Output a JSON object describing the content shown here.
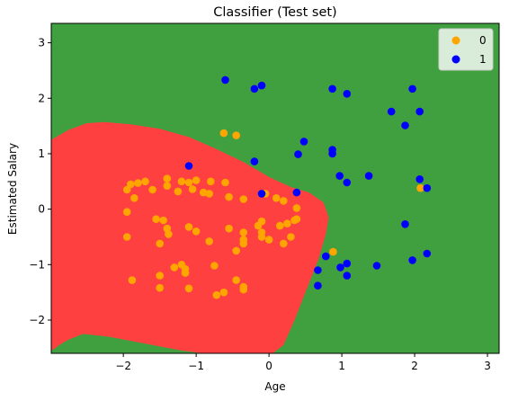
{
  "chart_data": {
    "type": "scatter",
    "title": "Classifier (Test set)",
    "xlabel": "Age",
    "ylabel": "Estimated Salary",
    "xlim": [
      -2.99,
      3.16
    ],
    "ylim": [
      -2.6,
      3.35
    ],
    "x_ticks": [
      -2,
      -1,
      0,
      1,
      2,
      3
    ],
    "y_ticks": [
      -2,
      -1,
      0,
      1,
      2,
      3
    ],
    "x_tick_labels": [
      "−2",
      "−1",
      "0",
      "1",
      "2",
      "3"
    ],
    "y_tick_labels": [
      "−2",
      "−1",
      "0",
      "1",
      "2",
      "3"
    ],
    "grid": false,
    "legend_position": "top-right",
    "background_region": {
      "class_0_color": "#ff4040",
      "class_1_color": "#40a040",
      "boundary": [
        [
          -2.99,
          -2.55
        ],
        [
          -2.95,
          -2.52
        ],
        [
          -2.88,
          -2.45
        ],
        [
          -2.75,
          -2.35
        ],
        [
          -2.55,
          -2.25
        ],
        [
          -2.2,
          -2.3
        ],
        [
          -1.6,
          -2.45
        ],
        [
          -1.2,
          -2.55
        ],
        [
          -0.9,
          -2.6
        ],
        [
          0.05,
          -2.6
        ],
        [
          0.2,
          -2.45
        ],
        [
          0.35,
          -2.0
        ],
        [
          0.5,
          -1.5
        ],
        [
          0.68,
          -0.9
        ],
        [
          0.78,
          -0.45
        ],
        [
          0.82,
          -0.15
        ],
        [
          0.75,
          0.12
        ],
        [
          0.55,
          0.3
        ],
        [
          0.3,
          0.4
        ],
        [
          0.0,
          0.58
        ],
        [
          -0.35,
          0.85
        ],
        [
          -0.75,
          1.1
        ],
        [
          -1.1,
          1.3
        ],
        [
          -1.5,
          1.45
        ],
        [
          -1.9,
          1.53
        ],
        [
          -2.25,
          1.57
        ],
        [
          -2.5,
          1.55
        ],
        [
          -2.75,
          1.43
        ],
        [
          -2.99,
          1.25
        ]
      ]
    },
    "series": [
      {
        "name": "0",
        "color": "#ffa500",
        "points": [
          [
            -1.9,
            0.45
          ],
          [
            -1.8,
            0.47
          ],
          [
            -1.7,
            0.5
          ],
          [
            -1.95,
            0.35
          ],
          [
            -1.85,
            0.2
          ],
          [
            -1.6,
            0.35
          ],
          [
            -1.4,
            0.42
          ],
          [
            -1.4,
            0.55
          ],
          [
            -1.2,
            0.5
          ],
          [
            -1.1,
            0.48
          ],
          [
            -1.0,
            0.52
          ],
          [
            -0.8,
            0.5
          ],
          [
            -0.6,
            0.48
          ],
          [
            -1.25,
            0.32
          ],
          [
            -1.05,
            0.36
          ],
          [
            -0.9,
            0.3
          ],
          [
            -0.82,
            0.28
          ],
          [
            -0.55,
            0.22
          ],
          [
            -0.35,
            0.18
          ],
          [
            -0.05,
            0.28
          ],
          [
            0.1,
            0.2
          ],
          [
            0.2,
            0.15
          ],
          [
            0.38,
            0.02
          ],
          [
            -1.95,
            -0.05
          ],
          [
            -1.55,
            -0.18
          ],
          [
            -1.45,
            -0.2
          ],
          [
            -1.4,
            -0.35
          ],
          [
            -1.38,
            -0.45
          ],
          [
            -1.1,
            -0.32
          ],
          [
            -1.0,
            -0.4
          ],
          [
            -0.55,
            -0.35
          ],
          [
            -0.35,
            -0.42
          ],
          [
            -0.35,
            -0.55
          ],
          [
            -0.35,
            -0.62
          ],
          [
            -0.15,
            -0.3
          ],
          [
            -0.1,
            -0.22
          ],
          [
            -0.1,
            -0.42
          ],
          [
            -0.1,
            -0.5
          ],
          [
            0.0,
            -0.55
          ],
          [
            0.15,
            -0.3
          ],
          [
            0.25,
            -0.26
          ],
          [
            0.35,
            -0.2
          ],
          [
            0.3,
            -0.5
          ],
          [
            0.2,
            -0.62
          ],
          [
            0.38,
            -0.18
          ],
          [
            -1.95,
            -0.5
          ],
          [
            -1.5,
            -0.62
          ],
          [
            -0.82,
            -0.58
          ],
          [
            -0.45,
            -0.75
          ],
          [
            -1.3,
            -1.05
          ],
          [
            -1.2,
            -1.0
          ],
          [
            -1.15,
            -1.08
          ],
          [
            -1.5,
            -1.2
          ],
          [
            -1.15,
            -1.15
          ],
          [
            -0.75,
            -1.02
          ],
          [
            -0.45,
            -1.28
          ],
          [
            -0.35,
            -1.4
          ],
          [
            -0.35,
            -1.45
          ],
          [
            -1.88,
            -1.28
          ],
          [
            -1.5,
            -1.42
          ],
          [
            -1.1,
            -1.43
          ],
          [
            -0.72,
            -1.55
          ],
          [
            -0.62,
            -1.5
          ],
          [
            -0.62,
            1.37
          ],
          [
            -0.45,
            1.33
          ],
          [
            0.88,
            -0.77
          ],
          [
            2.08,
            0.38
          ]
        ]
      },
      {
        "name": "1",
        "color": "#0000ff",
        "points": [
          [
            -0.6,
            2.33
          ],
          [
            -0.2,
            2.17
          ],
          [
            -0.1,
            2.23
          ],
          [
            0.87,
            2.17
          ],
          [
            1.07,
            2.08
          ],
          [
            1.97,
            2.17
          ],
          [
            1.68,
            1.76
          ],
          [
            2.07,
            1.76
          ],
          [
            1.87,
            1.51
          ],
          [
            0.48,
            1.22
          ],
          [
            0.4,
            0.99
          ],
          [
            0.87,
            1.07
          ],
          [
            0.87,
            1.0
          ],
          [
            -0.2,
            0.86
          ],
          [
            -1.1,
            0.78
          ],
          [
            0.97,
            0.6
          ],
          [
            1.07,
            0.48
          ],
          [
            1.37,
            0.6
          ],
          [
            2.07,
            0.54
          ],
          [
            2.17,
            0.38
          ],
          [
            -0.1,
            0.28
          ],
          [
            0.38,
            0.3
          ],
          [
            1.87,
            -0.27
          ],
          [
            0.78,
            -0.85
          ],
          [
            0.67,
            -1.1
          ],
          [
            0.98,
            -1.05
          ],
          [
            1.07,
            -0.98
          ],
          [
            1.48,
            -1.02
          ],
          [
            1.97,
            -0.92
          ],
          [
            2.17,
            -0.8
          ],
          [
            1.07,
            -1.2
          ],
          [
            0.67,
            -1.38
          ]
        ]
      }
    ]
  }
}
